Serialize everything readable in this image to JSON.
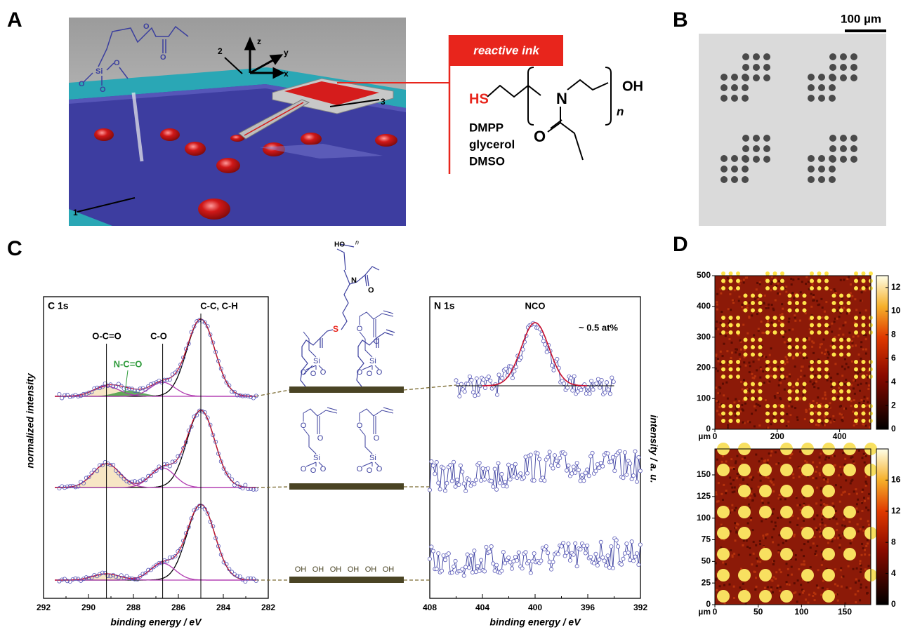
{
  "panel_labels": [
    "A",
    "B",
    "C",
    "D"
  ],
  "panel_a": {
    "ink_title": "reactive ink",
    "thiol": "HS",
    "components": [
      "DMPP",
      "glycerol",
      "DMSO"
    ],
    "nitrogen": "N",
    "oxygen": "O",
    "hydroxyl": "OH",
    "repeat": "n",
    "silicon": "Si",
    "axes": [
      "z",
      "y",
      "x"
    ],
    "callouts": [
      "1",
      "2",
      "3"
    ]
  },
  "panel_b": {
    "scale_bar": "100 µm"
  },
  "panel_c": {
    "c1s": {
      "title": "C 1s",
      "peaks": [
        "O-C=O",
        "C-O",
        "C-C, C-H",
        "N-C=O"
      ],
      "xlabel": "binding energy / eV",
      "ylabel": "normalized intensity",
      "xlim": [
        292,
        282
      ],
      "xticks": [
        292,
        290,
        288,
        286,
        284,
        282
      ]
    },
    "n1s": {
      "title": "N 1s",
      "peak": "NCO",
      "note": "~ 0.5 at%",
      "xlabel": "binding energy / eV",
      "ylabel": "intensity / a. u.",
      "xlim": [
        408,
        392
      ],
      "xticks": [
        408,
        404,
        400,
        396,
        392
      ]
    },
    "structures": {
      "hydroxyl_top": "HO",
      "repeat": "n",
      "nitrogen": "N",
      "oxygen": "O",
      "sulfur": "S",
      "silicon": "Si",
      "surface_hydroxyl": "OH"
    }
  },
  "panel_d": {
    "top": {
      "unit": "µm",
      "xlim": [
        0,
        500
      ],
      "xticks": [
        0,
        200,
        400
      ],
      "ylim": [
        0,
        500
      ],
      "yticks": [
        0,
        100,
        200,
        300,
        400,
        500
      ],
      "clim": [
        0,
        13
      ],
      "cticks": [
        0,
        2,
        4,
        6,
        8,
        10,
        12
      ]
    },
    "bottom": {
      "unit": "µm",
      "xlim": [
        0,
        180
      ],
      "xticks": [
        0,
        50,
        100,
        150
      ],
      "ylim": [
        0,
        180
      ],
      "yticks": [
        0,
        25,
        50,
        75,
        100,
        125,
        150
      ],
      "clim": [
        0,
        20
      ],
      "cticks": [
        0,
        4,
        8,
        12,
        16
      ]
    }
  }
}
